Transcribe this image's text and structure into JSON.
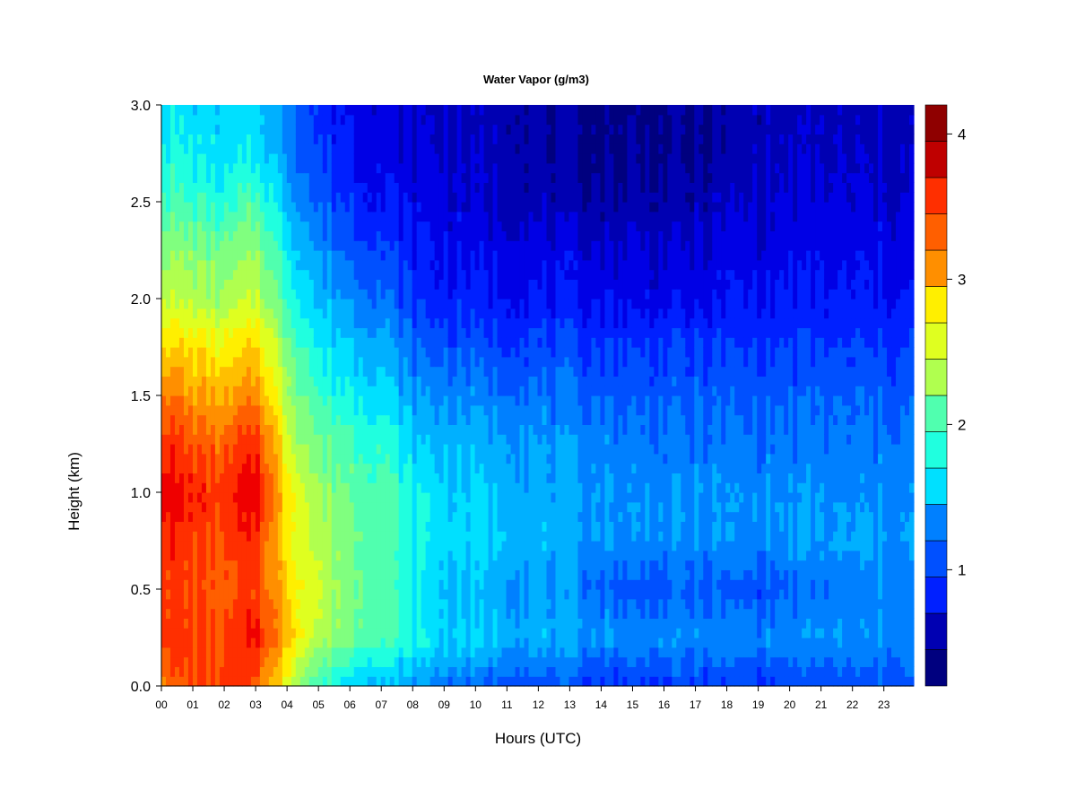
{
  "chart_data": {
    "type": "heatmap",
    "title": "Water Vapor (g/m3)",
    "xlabel": "Hours (UTC)",
    "ylabel": "Height (km)",
    "x_ticks": [
      "00",
      "01",
      "02",
      "03",
      "04",
      "05",
      "06",
      "07",
      "08",
      "09",
      "10",
      "11",
      "12",
      "13",
      "14",
      "15",
      "16",
      "17",
      "18",
      "19",
      "20",
      "21",
      "22",
      "23"
    ],
    "x_range": [
      0,
      23.95
    ],
    "y_ticks": [
      "0.0",
      "0.5",
      "1.0",
      "1.5",
      "2.0",
      "2.5",
      "3.0"
    ],
    "y_range": [
      0,
      3
    ],
    "colorbar": {
      "ticks": [
        "1",
        "2",
        "3",
        "4"
      ],
      "range": [
        0.2,
        4.2
      ],
      "levels": [
        0.2,
        0.45,
        0.7,
        0.95,
        1.2,
        1.45,
        1.7,
        1.95,
        2.2,
        2.45,
        2.7,
        2.95,
        3.2,
        3.45,
        3.7,
        3.95,
        4.2
      ],
      "colors": [
        "#00007f",
        "#0000b2",
        "#0000e5",
        "#0020ff",
        "#0050ff",
        "#0080ff",
        "#00b0ff",
        "#00e0ff",
        "#20ffdf",
        "#50ffaf",
        "#80ff7f",
        "#b0ff4f",
        "#dfff20",
        "#ffef00",
        "#ffbf00",
        "#ff8f00",
        "#ff5f00",
        "#ff2f00",
        "#ef0000",
        "#bf0000",
        "#8f0000"
      ]
    },
    "heights_km": [
      0.0,
      0.25,
      0.5,
      0.75,
      1.0,
      1.25,
      1.5,
      1.75,
      2.0,
      2.25,
      2.5,
      2.75,
      3.0
    ],
    "hours": [
      0,
      1,
      2,
      3,
      4,
      5,
      6,
      7,
      8,
      9,
      10,
      11,
      12,
      13,
      14,
      15,
      16,
      17,
      18,
      19,
      20,
      21,
      22,
      23,
      23.95
    ],
    "values": [
      [
        3.3,
        3.4,
        3.5,
        3.4,
        2.6,
        1.9,
        1.6,
        1.5,
        1.35,
        1.25,
        1.15,
        1.1,
        1.05,
        1.0,
        0.95,
        0.95,
        0.95,
        0.95,
        0.95,
        0.95,
        1.0,
        1.0,
        1.0,
        1.05,
        1.05
      ],
      [
        3.6,
        3.5,
        3.4,
        3.7,
        3.0,
        2.4,
        2.2,
        2.0,
        1.8,
        1.6,
        1.55,
        1.5,
        1.45,
        1.4,
        1.35,
        1.3,
        1.3,
        1.3,
        1.3,
        1.3,
        1.3,
        1.3,
        1.3,
        1.3,
        1.3
      ],
      [
        3.5,
        3.4,
        3.3,
        3.5,
        2.9,
        2.5,
        2.2,
        2.0,
        1.7,
        1.5,
        1.45,
        1.4,
        1.35,
        1.25,
        1.15,
        1.05,
        1.05,
        1.1,
        1.05,
        1.05,
        1.1,
        1.2,
        1.2,
        1.25,
        1.25
      ],
      [
        3.6,
        3.5,
        3.4,
        3.6,
        2.8,
        2.4,
        2.2,
        2.0,
        1.8,
        1.65,
        1.6,
        1.55,
        1.45,
        1.4,
        1.35,
        1.3,
        1.3,
        1.3,
        1.3,
        1.3,
        1.35,
        1.35,
        1.35,
        1.35,
        1.35
      ],
      [
        3.8,
        3.6,
        3.5,
        3.8,
        2.8,
        2.3,
        2.1,
        2.0,
        1.75,
        1.6,
        1.55,
        1.5,
        1.45,
        1.4,
        1.35,
        1.3,
        1.3,
        1.3,
        1.3,
        1.3,
        1.3,
        1.3,
        1.3,
        1.3,
        1.3
      ],
      [
        3.6,
        3.4,
        3.3,
        3.6,
        2.6,
        2.1,
        2.0,
        1.9,
        1.55,
        1.5,
        1.45,
        1.4,
        1.35,
        1.3,
        1.25,
        1.25,
        1.2,
        1.2,
        1.2,
        1.2,
        1.2,
        1.2,
        1.2,
        1.2,
        1.2
      ],
      [
        3.3,
        3.1,
        3.0,
        3.2,
        2.4,
        1.9,
        1.75,
        1.65,
        1.35,
        1.3,
        1.25,
        1.2,
        1.2,
        1.15,
        1.1,
        1.1,
        1.1,
        1.1,
        1.1,
        1.1,
        1.1,
        1.1,
        1.1,
        1.1,
        1.1
      ],
      [
        2.9,
        2.8,
        2.7,
        2.9,
        2.2,
        1.7,
        1.55,
        1.45,
        1.15,
        1.05,
        1.05,
        1.0,
        1.0,
        1.0,
        0.95,
        0.95,
        0.95,
        0.95,
        0.95,
        0.95,
        0.95,
        0.95,
        0.95,
        0.95,
        0.95
      ],
      [
        2.5,
        2.4,
        2.3,
        2.5,
        1.9,
        1.5,
        1.3,
        1.2,
        0.95,
        0.85,
        0.85,
        0.8,
        0.8,
        0.75,
        0.75,
        0.7,
        0.7,
        0.7,
        0.75,
        0.8,
        0.8,
        0.8,
        0.8,
        0.8,
        0.8
      ],
      [
        2.3,
        2.2,
        2.1,
        2.3,
        1.7,
        1.3,
        1.1,
        1.0,
        0.8,
        0.75,
        0.7,
        0.7,
        0.65,
        0.65,
        0.6,
        0.6,
        0.6,
        0.6,
        0.65,
        0.65,
        0.7,
        0.7,
        0.7,
        0.7,
        0.7
      ],
      [
        2.0,
        1.9,
        1.8,
        2.0,
        1.5,
        1.1,
        0.95,
        0.8,
        0.7,
        0.65,
        0.6,
        0.55,
        0.5,
        0.45,
        0.45,
        0.45,
        0.45,
        0.45,
        0.55,
        0.6,
        0.6,
        0.6,
        0.6,
        0.6,
        0.6
      ],
      [
        1.8,
        1.7,
        1.6,
        1.7,
        1.35,
        0.95,
        0.8,
        0.7,
        0.6,
        0.6,
        0.55,
        0.5,
        0.45,
        0.4,
        0.35,
        0.35,
        0.35,
        0.35,
        0.45,
        0.5,
        0.55,
        0.55,
        0.55,
        0.55,
        0.55
      ],
      [
        1.7,
        1.6,
        1.6,
        1.6,
        1.3,
        0.9,
        0.75,
        0.65,
        0.55,
        0.55,
        0.5,
        0.5,
        0.45,
        0.4,
        0.35,
        0.35,
        0.35,
        0.35,
        0.45,
        0.5,
        0.5,
        0.5,
        0.5,
        0.5,
        0.5
      ]
    ]
  }
}
